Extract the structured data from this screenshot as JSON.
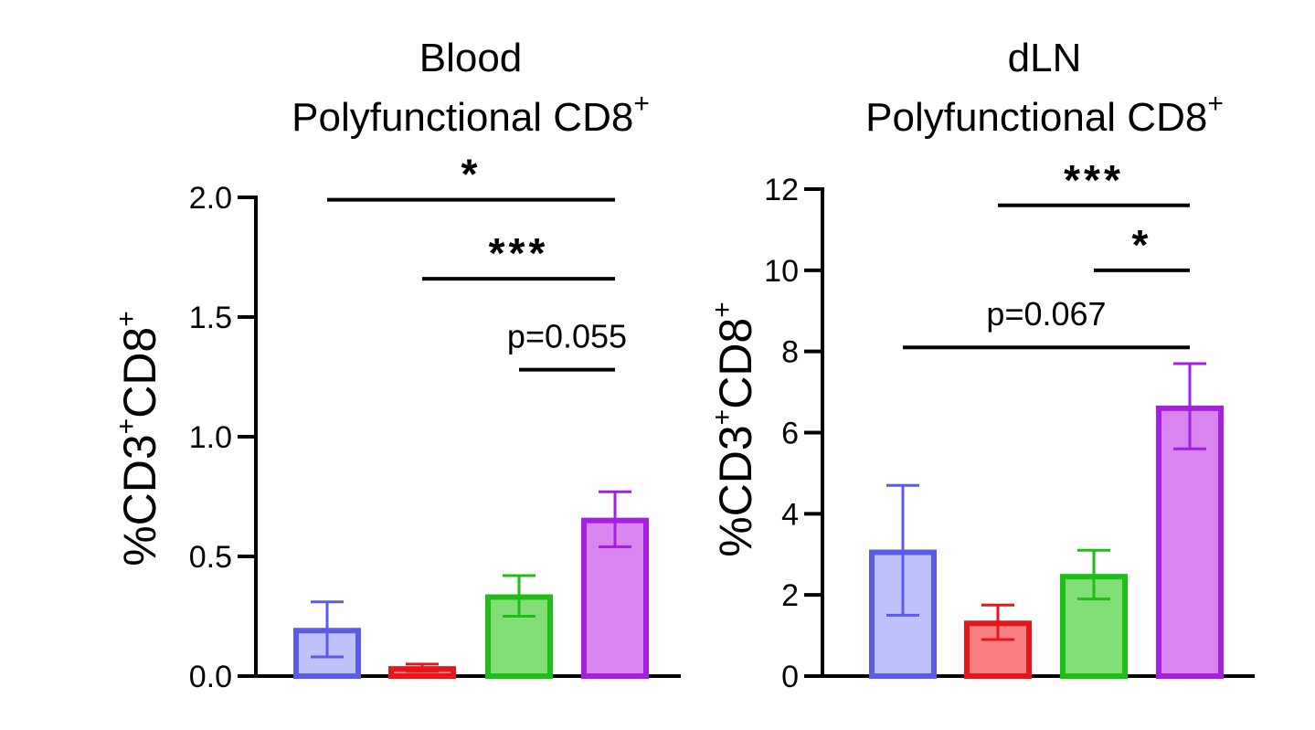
{
  "chart_data": [
    {
      "type": "bar",
      "title": "Blood",
      "subtitle": "Polyfunctional CD8",
      "subtitle_sup": "+",
      "ylabel": "%CD3",
      "ylabel_sup1": "+",
      "ylabel_mid": "CD8",
      "ylabel_sup2": "+",
      "ylim": [
        0,
        2.0
      ],
      "yticks": [
        "0.0",
        "0.5",
        "1.0",
        "1.5",
        "2.0"
      ],
      "ytick_values": [
        0,
        0.5,
        1.0,
        1.5,
        2.0
      ],
      "bars": [
        {
          "value": 0.19,
          "err_low": 0.08,
          "err_high": 0.31,
          "edge": "#5b5bea",
          "fill": "#bfc1fb"
        },
        {
          "value": 0.03,
          "err_low": 0.02,
          "err_high": 0.05,
          "edge": "#e8161b",
          "fill": "#f98080"
        },
        {
          "value": 0.33,
          "err_low": 0.25,
          "err_high": 0.42,
          "edge": "#1fbe17",
          "fill": "#82df78"
        },
        {
          "value": 0.65,
          "err_low": 0.54,
          "err_high": 0.77,
          "edge": "#a41fe0",
          "fill": "#d885f2"
        }
      ],
      "comparisons": [
        {
          "from": 0,
          "to": 3,
          "y": 1.99,
          "label": "*",
          "kind": "stars"
        },
        {
          "from": 1,
          "to": 3,
          "y": 1.66,
          "label": "***",
          "kind": "stars"
        },
        {
          "from": 2,
          "to": 3,
          "y": 1.28,
          "label": "p=0.055",
          "kind": "text"
        }
      ]
    },
    {
      "type": "bar",
      "title": "dLN",
      "subtitle": "Polyfunctional CD8",
      "subtitle_sup": "+",
      "ylabel": "%CD3",
      "ylabel_sup1": "+",
      "ylabel_mid": "CD8",
      "ylabel_sup2": "+",
      "ylim": [
        0,
        12
      ],
      "yticks": [
        "0",
        "2",
        "4",
        "6",
        "8",
        "10",
        "12"
      ],
      "ytick_values": [
        0,
        2,
        4,
        6,
        8,
        10,
        12
      ],
      "bars": [
        {
          "value": 3.05,
          "err_low": 1.5,
          "err_high": 4.7,
          "edge": "#5b5bea",
          "fill": "#bfc1fb"
        },
        {
          "value": 1.3,
          "err_low": 0.9,
          "err_high": 1.75,
          "edge": "#e8161b",
          "fill": "#f98080"
        },
        {
          "value": 2.45,
          "err_low": 1.9,
          "err_high": 3.1,
          "edge": "#1fbe17",
          "fill": "#82df78"
        },
        {
          "value": 6.6,
          "err_low": 5.6,
          "err_high": 7.7,
          "edge": "#a41fe0",
          "fill": "#d885f2"
        }
      ],
      "comparisons": [
        {
          "from": 1,
          "to": 3,
          "y": 11.6,
          "label": "***",
          "kind": "stars"
        },
        {
          "from": 2,
          "to": 3,
          "y": 10.0,
          "label": "*",
          "kind": "stars"
        },
        {
          "from": 0,
          "to": 3,
          "y": 8.1,
          "label": "p=0.067",
          "kind": "text"
        }
      ]
    }
  ]
}
